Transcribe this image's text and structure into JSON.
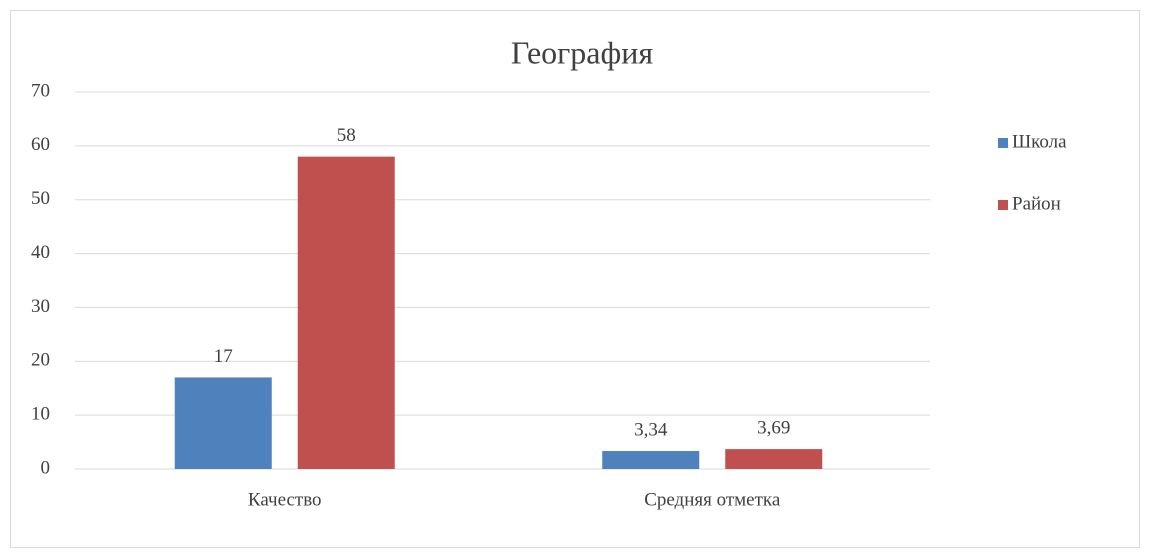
{
  "chart_data": {
    "type": "bar",
    "title": "География",
    "categories": [
      "Качество",
      "Средняя отметка"
    ],
    "series": [
      {
        "name": "Школа",
        "color": "#4f81bd",
        "values": [
          17,
          3.34
        ],
        "value_labels": [
          "17",
          "3,34"
        ]
      },
      {
        "name": "Район",
        "color": "#c0504d",
        "values": [
          58,
          3.69
        ],
        "value_labels": [
          "58",
          "3,69"
        ]
      }
    ],
    "ylim": [
      0,
      70
    ],
    "yticks": [
      0,
      10,
      20,
      30,
      40,
      50,
      60,
      70
    ],
    "grid": true,
    "legend": "right"
  }
}
